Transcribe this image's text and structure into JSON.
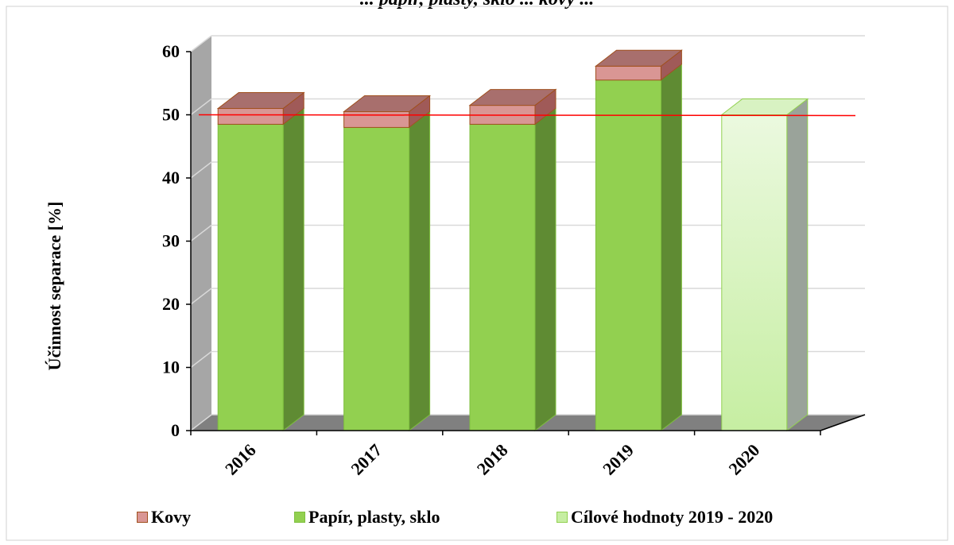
{
  "title": "... papír, plasty, sklo ... kovy ...",
  "colors": {
    "kovy_front": "#d99694",
    "kovy_top": "#a86f6d",
    "kovy_side": "#a05a58",
    "kovy_edge": "#a0501e",
    "green_front": "#92d050",
    "green_side": "#5f8b33",
    "target_front_top": "#ebf9df",
    "target_front_bottom": "#c6eea2",
    "target_side": "#9aa39a",
    "target_top": "#d8f2c2",
    "red_line": "#ff0000",
    "wall": "#a6a6a6",
    "floor": "#808080"
  },
  "chart_data": {
    "type": "bar",
    "stacked": true,
    "three_d": true,
    "categories": [
      "2016",
      "2017",
      "2018",
      "2019",
      "2020"
    ],
    "series": [
      {
        "name": "Papír, plasty, sklo",
        "values": [
          48.5,
          48.0,
          48.5,
          55.5,
          null
        ]
      },
      {
        "name": "Kovy",
        "values": [
          2.5,
          2.5,
          3.0,
          2.2,
          null
        ]
      },
      {
        "name": "Cílové hodnoty 2019 - 2020",
        "values": [
          null,
          null,
          null,
          null,
          50
        ]
      }
    ],
    "reference_line": 50,
    "ylabel": "Účinnost separace [%]",
    "xlabel": "",
    "ylim": [
      0,
      60
    ],
    "yticks": [
      "0",
      "10",
      "20",
      "30",
      "40",
      "50",
      "60"
    ],
    "grid": true,
    "legend_position": "bottom"
  }
}
